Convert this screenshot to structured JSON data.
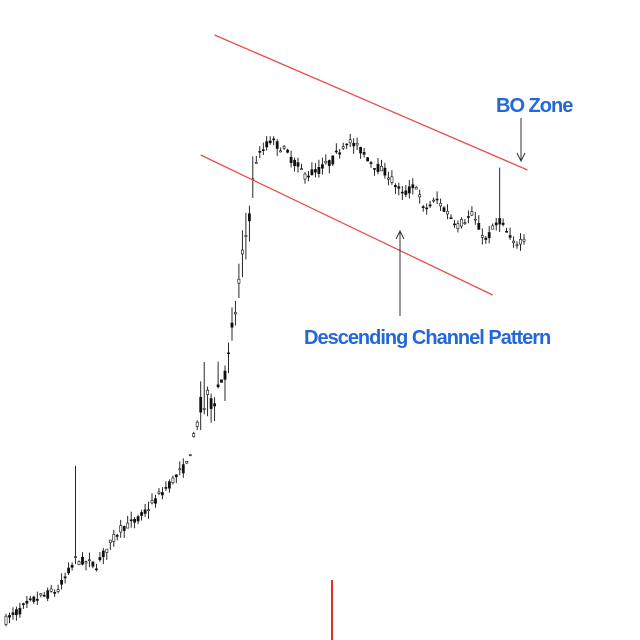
{
  "chart_data": {
    "type": "candlestick",
    "title": "",
    "xlabel": "",
    "ylabel": "",
    "axes_visible": false,
    "grid": false,
    "legend": "none",
    "ylim": [
      0,
      640
    ],
    "candle_count": 150,
    "price_path": [
      [
        0,
        20
      ],
      [
        8,
        40
      ],
      [
        15,
        50
      ],
      [
        20,
        80
      ],
      [
        26,
        75
      ],
      [
        33,
        112
      ],
      [
        38,
        120
      ],
      [
        43,
        140
      ],
      [
        48,
        160
      ],
      [
        52,
        175
      ],
      [
        56,
        230
      ],
      [
        60,
        245
      ],
      [
        64,
        280
      ],
      [
        66,
        330
      ],
      [
        68,
        380
      ],
      [
        70,
        430
      ],
      [
        72,
        480
      ],
      [
        76,
        500
      ],
      [
        80,
        490
      ],
      [
        86,
        465
      ],
      [
        90,
        470
      ],
      [
        94,
        480
      ],
      [
        98,
        500
      ],
      [
        102,
        490
      ],
      [
        106,
        475
      ],
      [
        110,
        465
      ],
      [
        114,
        445
      ],
      [
        118,
        455
      ],
      [
        120,
        430
      ],
      [
        124,
        440
      ],
      [
        130,
        415
      ],
      [
        134,
        425
      ],
      [
        138,
        400
      ],
      [
        142,
        420
      ],
      [
        146,
        395
      ],
      [
        150,
        405
      ]
    ],
    "annotations": [
      {
        "text": "BO Zone",
        "color": "#2368d8"
      },
      {
        "text": "Descending Channel Pattern",
        "color": "#2368d8"
      }
    ],
    "channel": {
      "upper": {
        "from": [
          60,
          605
        ],
        "to": [
          150,
          470
        ]
      },
      "lower": {
        "from": [
          56,
          485
        ],
        "to": [
          140,
          345
        ]
      },
      "color": "#e84c4c"
    },
    "colors": {
      "candle": "#111111",
      "marker": "#e03030",
      "arrow": "#333333"
    }
  }
}
